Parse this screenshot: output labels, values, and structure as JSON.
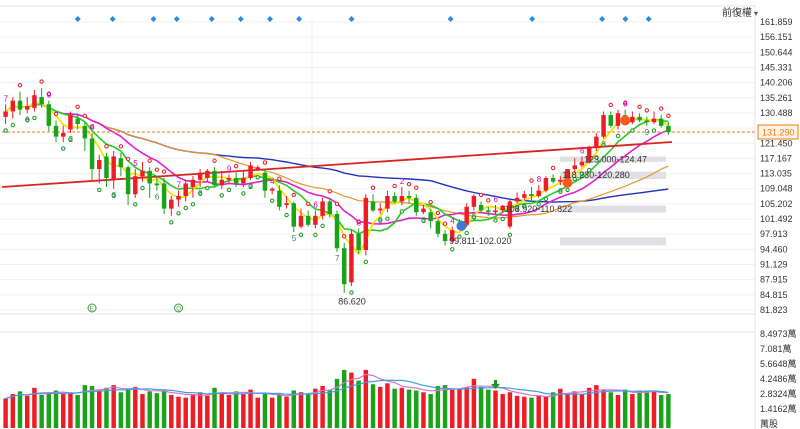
{
  "toolbar": {
    "restore_label": "前復權"
  },
  "colors": {
    "up": "#ee1c25",
    "down": "#1aa31a",
    "ma_yellow": "#f5e400",
    "ma_green": "#22cc22",
    "ma_magenta": "#e020d0",
    "ma_blue": "#2233bb",
    "ma_red": "#dd2222",
    "ma_orange": "#e8962a",
    "sar": "#1a9a1a",
    "current_price": "#e87a10"
  },
  "icons": {
    "marker_diamond": "diamond-marker-icon",
    "vol_arrow": "arrow-down-icon",
    "event_E": "event-e-icon",
    "event_Q": "event-q-icon",
    "restore_caret": "caret-down-icon"
  },
  "chart_data": {
    "type": "candlestick",
    "price_ylim": [
      81.823,
      161.859
    ],
    "price_ticks": [
      "161.859",
      "156.151",
      "150.644",
      "145.331",
      "140.206",
      "135.261",
      "130.488",
      "125.889",
      "121.450",
      "117.167",
      "113.035",
      "109.048",
      "105.202",
      "101.492",
      "97.913",
      "94.460",
      "91.129",
      "87.915",
      "84.815",
      "81.823"
    ],
    "current_price_label": "131.290",
    "current_price": 131.29,
    "volume_ticks": [
      "8.4973萬",
      "7.081萬",
      "5.6648萬",
      "4.2486萬",
      "2.8324萬",
      "1.4162萬",
      "萬股"
    ],
    "volume_max": 8.4973,
    "candles": [
      [
        135.5,
        137.0,
        139.0,
        133.5,
        2.4
      ],
      [
        137.0,
        140.0,
        141.0,
        135.0,
        2.9
      ],
      [
        140.0,
        137.5,
        142.5,
        136.0,
        3.2
      ],
      [
        137.5,
        138.5,
        141.0,
        136.5,
        2.7
      ],
      [
        138.0,
        141.5,
        143.0,
        137.0,
        3.6
      ],
      [
        141.0,
        139.0,
        143.5,
        138.0,
        2.8
      ],
      [
        139.0,
        133.0,
        140.0,
        131.5,
        3.0
      ],
      [
        133.0,
        130.0,
        134.5,
        128.5,
        3.3
      ],
      [
        130.0,
        131.0,
        133.0,
        128.5,
        2.9
      ],
      [
        132.0,
        136.0,
        137.0,
        131.0,
        3.1
      ],
      [
        135.0,
        133.5,
        136.5,
        132.0,
        2.8
      ],
      [
        133.0,
        129.5,
        134.0,
        126.0,
        3.9
      ],
      [
        129.5,
        121.0,
        131.0,
        118.0,
        3.8
      ],
      [
        121.0,
        123.5,
        125.0,
        117.0,
        3.3
      ],
      [
        124.5,
        118.5,
        125.5,
        116.0,
        3.6
      ],
      [
        118.0,
        124.5,
        126.0,
        115.5,
        3.9
      ],
      [
        124.0,
        121.5,
        125.5,
        119.0,
        3.1
      ],
      [
        121.5,
        114.0,
        122.0,
        111.0,
        3.5
      ],
      [
        114.0,
        119.0,
        121.0,
        113.0,
        3.7
      ],
      [
        119.0,
        120.5,
        123.0,
        117.5,
        2.9
      ],
      [
        120.5,
        117.0,
        121.5,
        113.0,
        3.2
      ],
      [
        117.0,
        116.5,
        119.0,
        115.0,
        3.0
      ],
      [
        117.0,
        110.0,
        118.5,
        108.5,
        3.4
      ],
      [
        110.0,
        112.5,
        113.5,
        108.0,
        2.8
      ],
      [
        112.5,
        113.5,
        115.0,
        110.5,
        2.6
      ],
      [
        113.5,
        117.0,
        118.0,
        112.0,
        2.5
      ],
      [
        116.0,
        118.0,
        119.0,
        113.0,
        2.9
      ],
      [
        118.0,
        120.0,
        121.0,
        116.0,
        3.1
      ],
      [
        118.5,
        120.5,
        121.0,
        117.5,
        2.7
      ],
      [
        120.5,
        116.5,
        121.5,
        116.0,
        3.6
      ],
      [
        116.5,
        118.0,
        120.5,
        115.5,
        3.0
      ],
      [
        118.0,
        118.5,
        119.5,
        117.0,
        2.8
      ],
      [
        118.5,
        117.0,
        120.0,
        116.0,
        3.2
      ],
      [
        117.0,
        118.5,
        120.5,
        116.0,
        2.9
      ],
      [
        118.5,
        122.0,
        123.0,
        118.0,
        3.4
      ],
      [
        121.0,
        121.5,
        122.0,
        120.5,
        2.5
      ],
      [
        120.0,
        115.0,
        121.0,
        113.0,
        3.0
      ],
      [
        115.0,
        115.5,
        116.0,
        114.0,
        2.5
      ],
      [
        115.0,
        110.5,
        116.5,
        109.5,
        2.8
      ],
      [
        111.0,
        111.5,
        113.5,
        110.0,
        2.6
      ],
      [
        111.5,
        105.0,
        112.0,
        103.5,
        3.3
      ],
      [
        105.0,
        108.0,
        110.0,
        104.5,
        3.1
      ],
      [
        108.0,
        105.5,
        109.5,
        105.0,
        2.9
      ],
      [
        105.5,
        108.0,
        109.5,
        104.5,
        3.5
      ],
      [
        108.0,
        112.0,
        113.0,
        107.0,
        3.8
      ],
      [
        112.0,
        108.5,
        113.0,
        107.5,
        3.4
      ],
      [
        108.5,
        99.0,
        109.5,
        98.0,
        4.6
      ],
      [
        99.0,
        89.0,
        100.5,
        86.6,
        5.6
      ],
      [
        89.5,
        103.0,
        104.0,
        88.5,
        5.3
      ],
      [
        103.0,
        98.5,
        104.5,
        97.5,
        4.4
      ],
      [
        98.5,
        113.0,
        114.0,
        97.0,
        5.6
      ],
      [
        112.0,
        109.5,
        114.0,
        109.0,
        4.0
      ],
      [
        109.5,
        110.0,
        111.5,
        108.5,
        3.7
      ],
      [
        110.0,
        113.5,
        115.0,
        109.0,
        4.1
      ],
      [
        113.5,
        112.0,
        114.5,
        111.5,
        3.5
      ],
      [
        112.0,
        113.5,
        116.0,
        111.0,
        3.6
      ],
      [
        113.5,
        113.0,
        115.0,
        111.5,
        3.4
      ],
      [
        113.0,
        109.0,
        114.0,
        108.0,
        3.3
      ],
      [
        109.0,
        110.0,
        111.0,
        108.5,
        3.1
      ],
      [
        109.0,
        106.5,
        110.0,
        104.5,
        2.9
      ],
      [
        106.5,
        103.0,
        107.0,
        102.0,
        3.8
      ],
      [
        103.0,
        101.0,
        104.0,
        99.811,
        3.9
      ],
      [
        101.0,
        104.0,
        105.0,
        100.5,
        3.4
      ],
      [
        104.5,
        105.5,
        107.0,
        104.0,
        3.5
      ],
      [
        105.5,
        110.5,
        111.5,
        105.0,
        3.7
      ],
      [
        110.5,
        113.5,
        114.0,
        109.5,
        4.6
      ],
      [
        111.0,
        109.5,
        112.0,
        108.8,
        3.7
      ],
      [
        109.5,
        109.0,
        110.5,
        108.0,
        3.4
      ],
      [
        109.0,
        109.5,
        111.0,
        108.5,
        3.3
      ],
      [
        109.5,
        110.822,
        111.0,
        108.9,
        2.9
      ],
      [
        105.0,
        112.0,
        112.5,
        104.5,
        3.1
      ],
      [
        112.0,
        113.0,
        114.5,
        111.5,
        2.7
      ],
      [
        113.0,
        114.0,
        115.0,
        112.5,
        2.6
      ],
      [
        114.0,
        113.5,
        116.0,
        112.0,
        2.5
      ],
      [
        113.5,
        115.0,
        116.5,
        113.0,
        2.7
      ],
      [
        115.0,
        118.5,
        119.0,
        114.5,
        2.6
      ],
      [
        118.5,
        117.5,
        119.5,
        117.0,
        3.1
      ],
      [
        117.5,
        118.0,
        119.0,
        116.5,
        3.5
      ],
      [
        118.0,
        121.0,
        121.0,
        117.0,
        3.0
      ],
      [
        121.0,
        122.0,
        124.0,
        120.0,
        3.2
      ],
      [
        122.0,
        123.0,
        124.47,
        121.5,
        2.9
      ],
      [
        123.0,
        127.0,
        127.5,
        122.5,
        3.6
      ],
      [
        127.0,
        130.0,
        131.0,
        126.0,
        3.9
      ],
      [
        130.0,
        136.0,
        137.0,
        129.5,
        3.3
      ],
      [
        136.0,
        133.0,
        137.0,
        132.5,
        3.1
      ],
      [
        133.0,
        136.5,
        137.5,
        132.0,
        2.8
      ],
      [
        136.0,
        134.0,
        137.5,
        133.5,
        3.4
      ],
      [
        134.0,
        135.5,
        137.0,
        133.5,
        2.9
      ],
      [
        135.5,
        134.5,
        136.5,
        134.0,
        3.2
      ],
      [
        134.5,
        134.0,
        135.5,
        133.0,
        3.2
      ],
      [
        134.0,
        135.0,
        137.0,
        133.5,
        3.3
      ],
      [
        135.0,
        133.0,
        136.0,
        132.5,
        2.8
      ],
      [
        133.0,
        131.29,
        134.0,
        130.5,
        2.9
      ]
    ],
    "annotations": [
      "86.620",
      "99.811-102.020",
      "108.920-110.822",
      "118.230-120.280",
      "123.000-124.47"
    ],
    "nine_turn_labels": [
      "7",
      "8",
      "9",
      "2",
      "4",
      "3",
      "5",
      "6",
      "7",
      "8",
      "9",
      "2",
      "4",
      "5",
      "6",
      "7",
      "8",
      "9",
      "2",
      "3",
      "4",
      "5",
      "6",
      "7",
      "8",
      "9",
      "6",
      "7",
      "8",
      "9"
    ],
    "event_labels": [
      "E",
      "Q"
    ]
  }
}
